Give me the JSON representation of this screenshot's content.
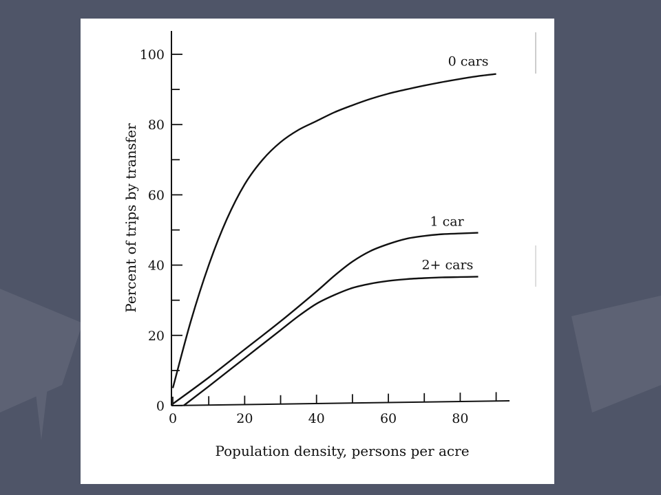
{
  "slide": {
    "background_color": "#4f5568",
    "paper_color": "#ffffff"
  },
  "chart_data": {
    "type": "line",
    "title": "",
    "xlabel": "Population density, persons per acre",
    "ylabel": "Percent of trips by transfer",
    "xlim": [
      0,
      95
    ],
    "ylim": [
      0,
      100
    ],
    "x_ticks": [
      0,
      20,
      40,
      60,
      80
    ],
    "y_ticks": [
      0,
      20,
      40,
      60,
      80,
      100
    ],
    "grid": false,
    "legend": "labels at line ends",
    "series": [
      {
        "name": "0 cars",
        "x": [
          0,
          5,
          10,
          15,
          20,
          25,
          30,
          35,
          40,
          45,
          50,
          55,
          60,
          65,
          70,
          75,
          80,
          85,
          90
        ],
        "values": [
          5,
          24,
          40,
          53,
          63,
          70,
          75,
          78.5,
          81,
          83.5,
          85.5,
          87.3,
          88.8,
          90,
          91.1,
          92.1,
          93,
          93.8,
          94.4
        ]
      },
      {
        "name": "1 car",
        "x": [
          0,
          10,
          20,
          30,
          40,
          45,
          50,
          55,
          60,
          65,
          70,
          75,
          80,
          85
        ],
        "values": [
          0.5,
          8,
          16,
          24,
          32.5,
          37,
          41,
          44,
          46,
          47.5,
          48.3,
          48.8,
          49,
          49.2
        ]
      },
      {
        "name": "2+ cars",
        "x": [
          3,
          10,
          20,
          30,
          35,
          40,
          45,
          50,
          55,
          60,
          65,
          70,
          75,
          80,
          85
        ],
        "values": [
          0,
          5.5,
          13.5,
          21.5,
          25.5,
          29,
          31.5,
          33.5,
          34.7,
          35.5,
          36,
          36.3,
          36.5,
          36.6,
          36.7
        ]
      }
    ]
  }
}
